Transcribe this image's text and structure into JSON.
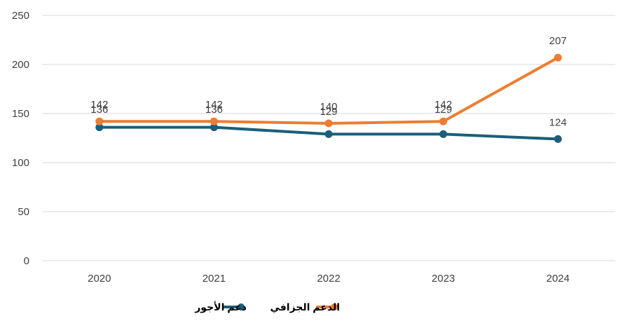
{
  "chart_data": {
    "type": "line",
    "title": "",
    "xlabel": "",
    "ylabel": "",
    "x": [
      "2020",
      "2021",
      "2022",
      "2023",
      "2024"
    ],
    "ylim": [
      0,
      250
    ],
    "yticks": [
      "0",
      "50",
      "100",
      "150",
      "200",
      "250"
    ],
    "grid": true,
    "legend_position": "bottom",
    "series": [
      {
        "name": "دعم الأجور",
        "color": "#1A5E7A",
        "values": [
          136,
          136,
          129,
          129,
          124
        ],
        "labels": [
          "136",
          "136",
          "129",
          "129",
          "124"
        ]
      },
      {
        "name": "الدعم الجزافي",
        "color": "#ED7D31",
        "values": [
          142,
          142,
          140,
          142,
          207
        ],
        "labels": [
          "142",
          "142",
          "140",
          "142",
          "207"
        ]
      }
    ]
  }
}
